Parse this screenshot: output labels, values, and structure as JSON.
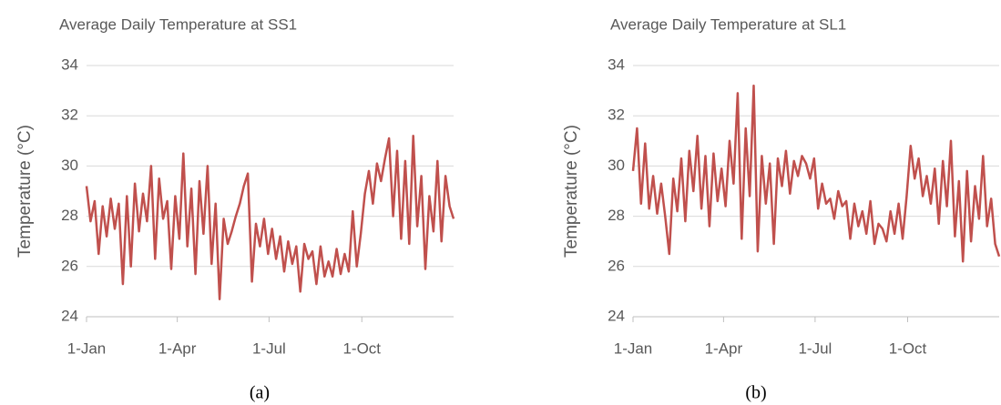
{
  "chart_data": [
    {
      "type": "line",
      "title": "Average Daily Temperature at SS1",
      "ylabel": "Temperature (°C)",
      "caption": "(a)",
      "color": "#c0504d",
      "grid": true,
      "x": [
        0,
        4,
        8,
        12,
        16,
        20,
        24,
        28,
        32,
        36,
        40,
        44,
        48,
        52,
        56,
        60,
        64,
        68,
        72,
        76,
        80,
        84,
        88,
        92,
        96,
        100,
        104,
        108,
        112,
        116,
        120,
        124,
        128,
        132,
        136,
        140,
        144,
        148,
        152,
        156,
        160,
        164,
        168,
        172,
        176,
        180,
        184,
        188,
        192,
        196,
        200,
        204,
        208,
        212,
        216,
        220,
        224,
        228,
        232,
        236,
        240,
        244,
        248,
        252,
        256,
        260,
        264,
        268,
        272,
        276,
        280,
        284,
        288,
        292,
        296,
        300,
        304,
        308,
        312,
        316,
        320,
        324,
        328,
        332,
        336,
        340,
        344,
        348,
        352,
        356,
        360,
        364
      ],
      "values": [
        29.2,
        27.8,
        28.6,
        26.5,
        28.4,
        27.2,
        28.7,
        27.5,
        28.5,
        25.3,
        28.8,
        26.0,
        29.3,
        27.4,
        28.9,
        27.8,
        30.0,
        26.3,
        29.5,
        27.9,
        28.6,
        25.9,
        28.8,
        27.1,
        30.5,
        26.8,
        29.1,
        25.7,
        29.4,
        27.3,
        30.0,
        26.1,
        28.5,
        24.7,
        27.9,
        26.9,
        27.4,
        28.0,
        28.5,
        29.2,
        29.7,
        25.4,
        27.7,
        26.8,
        27.9,
        26.5,
        27.5,
        26.3,
        27.2,
        25.8,
        27.0,
        26.1,
        26.8,
        25.0,
        26.9,
        26.3,
        26.6,
        25.3,
        26.8,
        25.6,
        26.2,
        25.6,
        26.7,
        25.7,
        26.5,
        25.8,
        28.2,
        26.0,
        27.3,
        28.9,
        29.8,
        28.5,
        30.1,
        29.4,
        30.3,
        31.1,
        28.0,
        30.6,
        27.1,
        30.2,
        26.9,
        31.2,
        27.6,
        29.6,
        25.9,
        28.8,
        27.4,
        30.2,
        27.0,
        29.6,
        28.4,
        27.9
      ],
      "xlim": [
        0,
        364
      ],
      "xticks": [
        {
          "value": 0,
          "label": "1-Jan"
        },
        {
          "value": 90,
          "label": "1-Apr"
        },
        {
          "value": 181,
          "label": "1-Jul"
        },
        {
          "value": 273,
          "label": "1-Oct"
        }
      ],
      "ylim": [
        24,
        34
      ],
      "yticks": [
        24,
        26,
        28,
        30,
        32,
        34
      ]
    },
    {
      "type": "line",
      "title": "Average Daily Temperature at SL1",
      "ylabel": "Temperature (°C)",
      "caption": "(b)",
      "color": "#c0504d",
      "grid": true,
      "x": [
        0,
        4,
        8,
        12,
        16,
        20,
        24,
        28,
        32,
        36,
        40,
        44,
        48,
        52,
        56,
        60,
        64,
        68,
        72,
        76,
        80,
        84,
        88,
        92,
        96,
        100,
        104,
        108,
        112,
        116,
        120,
        124,
        128,
        132,
        136,
        140,
        144,
        148,
        152,
        156,
        160,
        164,
        168,
        172,
        176,
        180,
        184,
        188,
        192,
        196,
        200,
        204,
        208,
        212,
        216,
        220,
        224,
        228,
        232,
        236,
        240,
        244,
        248,
        252,
        256,
        260,
        264,
        268,
        272,
        276,
        280,
        284,
        288,
        292,
        296,
        300,
        304,
        308,
        312,
        316,
        320,
        324,
        328,
        332,
        336,
        340,
        344,
        348,
        352,
        356,
        360,
        364
      ],
      "values": [
        29.8,
        31.5,
        28.5,
        30.9,
        28.3,
        29.6,
        28.1,
        29.3,
        28.0,
        26.5,
        29.5,
        28.2,
        30.3,
        27.8,
        30.6,
        29.0,
        31.2,
        28.3,
        30.4,
        27.6,
        30.5,
        28.6,
        29.9,
        28.4,
        31.0,
        29.3,
        32.9,
        27.1,
        31.5,
        28.8,
        33.2,
        26.6,
        30.4,
        28.5,
        30.1,
        26.9,
        30.3,
        29.2,
        30.6,
        28.9,
        30.2,
        29.6,
        30.4,
        30.1,
        29.5,
        30.3,
        28.3,
        29.3,
        28.5,
        28.7,
        27.9,
        29.0,
        28.4,
        28.6,
        27.1,
        28.5,
        27.6,
        28.2,
        27.3,
        28.6,
        26.9,
        27.7,
        27.5,
        27.0,
        28.2,
        27.3,
        28.5,
        27.1,
        28.8,
        30.8,
        29.5,
        30.3,
        28.8,
        29.6,
        28.5,
        29.9,
        27.7,
        30.2,
        28.4,
        31.0,
        27.2,
        29.4,
        26.2,
        29.8,
        27.0,
        29.2,
        27.9,
        30.4,
        27.6,
        28.7,
        26.9,
        26.4
      ],
      "xlim": [
        0,
        364
      ],
      "xticks": [
        {
          "value": 0,
          "label": "1-Jan"
        },
        {
          "value": 90,
          "label": "1-Apr"
        },
        {
          "value": 181,
          "label": "1-Jul"
        },
        {
          "value": 273,
          "label": "1-Oct"
        }
      ],
      "ylim": [
        24,
        34
      ],
      "yticks": [
        24,
        26,
        28,
        30,
        32,
        34
      ]
    }
  ]
}
